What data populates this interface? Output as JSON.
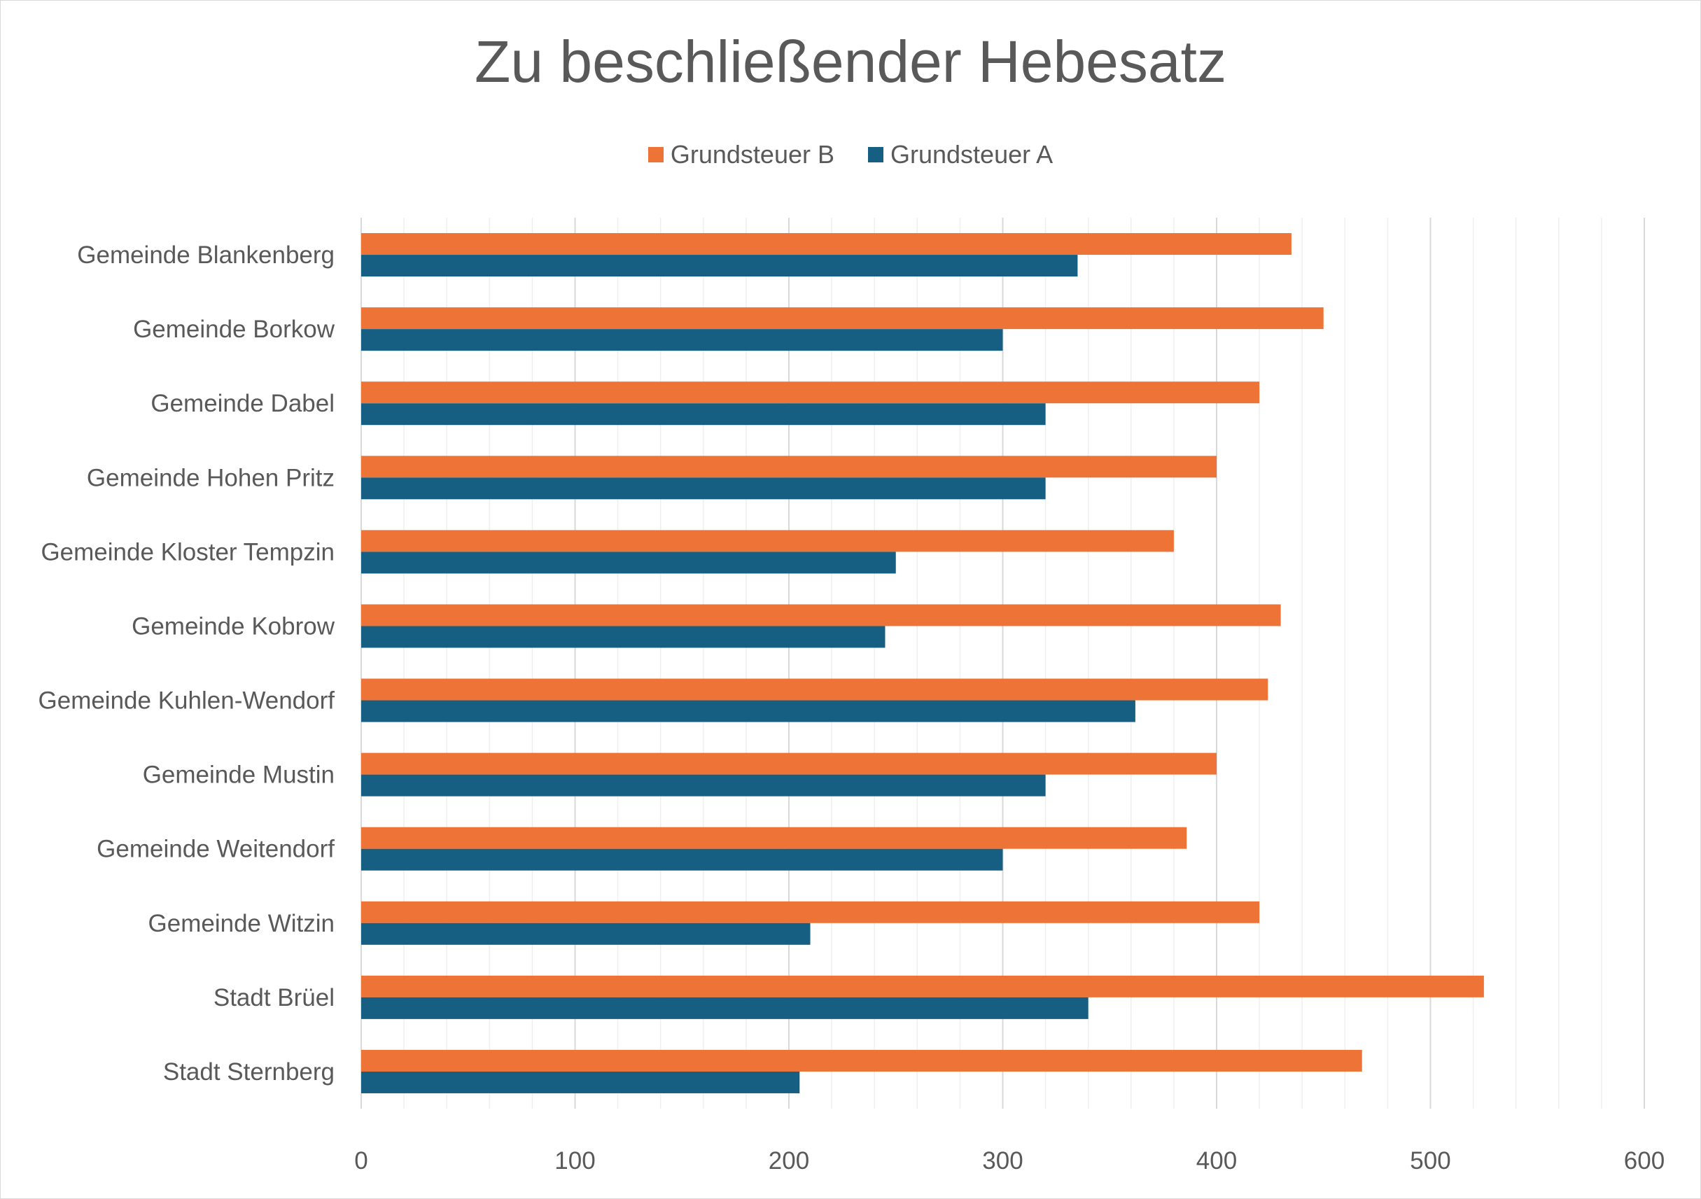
{
  "chart_data": {
    "type": "bar",
    "orientation": "horizontal",
    "title": "Zu beschließender Hebesatz",
    "xlabel": "",
    "ylabel": "",
    "xlim": [
      0,
      600
    ],
    "x_ticks": [
      "0",
      "100",
      "200",
      "300",
      "400",
      "500",
      "600"
    ],
    "grid": "major and minor vertical gridlines",
    "legend_position": "top",
    "categories": [
      "Gemeinde Blankenberg",
      "Gemeinde Borkow",
      "Gemeinde Dabel",
      "Gemeinde Hohen Pritz",
      "Gemeinde Kloster Tempzin",
      "Gemeinde Kobrow",
      "Gemeinde Kuhlen-Wendorf",
      "Gemeinde Mustin",
      "Gemeinde Weitendorf",
      "Gemeinde Witzin",
      "Stadt Brüel",
      "Stadt Sternberg"
    ],
    "series": [
      {
        "name": "Grundsteuer B",
        "color": "#ED7336",
        "values": [
          435,
          450,
          420,
          400,
          380,
          430,
          424,
          400,
          386,
          420,
          525,
          468
        ]
      },
      {
        "name": "Grundsteuer A",
        "color": "#175F82",
        "values": [
          335,
          300,
          320,
          320,
          250,
          245,
          362,
          320,
          300,
          210,
          340,
          205
        ]
      }
    ]
  }
}
